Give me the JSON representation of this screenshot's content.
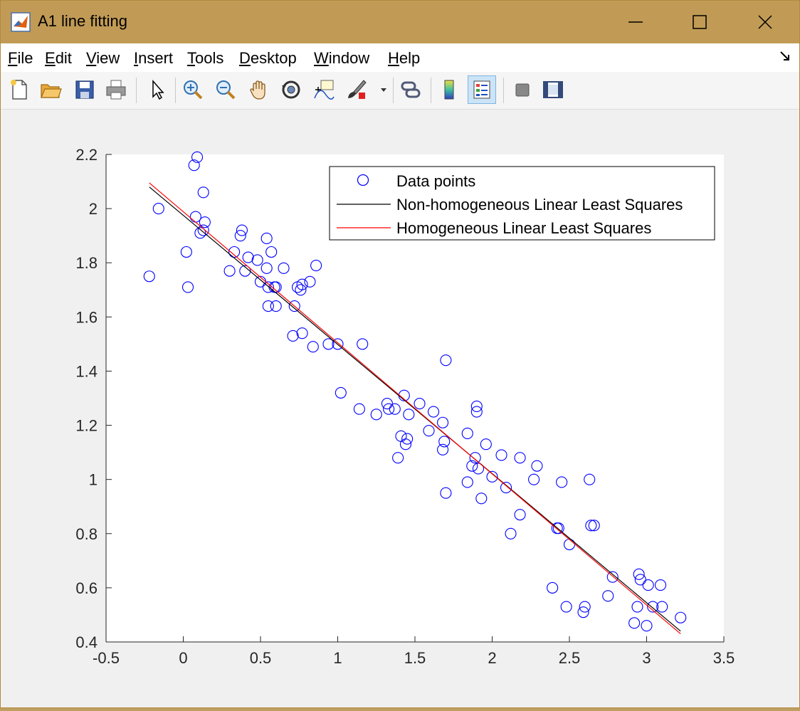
{
  "window": {
    "title": "A1 line fitting"
  },
  "menu": {
    "items": [
      {
        "key": "F",
        "rest": "ile"
      },
      {
        "key": "E",
        "rest": "dit"
      },
      {
        "key": "V",
        "rest": "iew"
      },
      {
        "key": "I",
        "rest": "nsert"
      },
      {
        "key": "T",
        "rest": "ools"
      },
      {
        "key": "D",
        "rest": "esktop"
      },
      {
        "key": "W",
        "rest": "indow"
      },
      {
        "key": "H",
        "rest": "elp"
      }
    ]
  },
  "toolbar": {
    "icons": [
      "new-file-icon",
      "open-folder-icon",
      "save-icon",
      "print-icon",
      "pointer-icon",
      "zoom-in-icon",
      "zoom-out-icon",
      "pan-hand-icon",
      "rotate-3d-icon",
      "data-cursor-icon",
      "brush-icon",
      "link-plot-icon",
      "colorbar-icon",
      "legend-icon",
      "hide-plot-tools-icon",
      "show-plot-tools-icon"
    ]
  },
  "chart_data": {
    "type": "scatter",
    "title": "",
    "xlabel": "",
    "ylabel": "",
    "xlim": [
      -0.5,
      3.5
    ],
    "ylim": [
      0.4,
      2.2
    ],
    "xticks": [
      "-0.5",
      "0",
      "0.5",
      "1",
      "1.5",
      "2",
      "2.5",
      "3",
      "3.5"
    ],
    "yticks": [
      "0.4",
      "0.6",
      "0.8",
      "1",
      "1.2",
      "1.4",
      "1.6",
      "1.8",
      "2",
      "2.2"
    ],
    "grid": false,
    "legend_placement": "top-right",
    "legend": [
      "Data points",
      "Non-homogeneous Linear Least Squares",
      "Homogeneous Linear Least Squares"
    ],
    "colors": {
      "points": "#0000ff",
      "nonhomogeneous": "#000000",
      "homogeneous": "#ff0000"
    },
    "series": [
      {
        "name": "Data points",
        "points": [
          [
            -0.22,
            1.75
          ],
          [
            -0.16,
            2.0
          ],
          [
            0.02,
            1.84
          ],
          [
            0.03,
            1.71
          ],
          [
            0.07,
            2.16
          ],
          [
            0.08,
            1.97
          ],
          [
            0.09,
            2.19
          ],
          [
            0.11,
            1.91
          ],
          [
            0.13,
            2.06
          ],
          [
            0.13,
            1.92
          ],
          [
            0.14,
            1.95
          ],
          [
            0.3,
            1.77
          ],
          [
            0.33,
            1.84
          ],
          [
            0.37,
            1.9
          ],
          [
            0.38,
            1.92
          ],
          [
            0.4,
            1.77
          ],
          [
            0.42,
            1.82
          ],
          [
            0.48,
            1.81
          ],
          [
            0.5,
            1.73
          ],
          [
            0.54,
            1.78
          ],
          [
            0.54,
            1.89
          ],
          [
            0.55,
            1.64
          ],
          [
            0.55,
            1.71
          ],
          [
            0.57,
            1.84
          ],
          [
            0.59,
            1.71
          ],
          [
            0.6,
            1.64
          ],
          [
            0.6,
            1.71
          ],
          [
            0.65,
            1.78
          ],
          [
            0.71,
            1.53
          ],
          [
            0.72,
            1.64
          ],
          [
            0.74,
            1.71
          ],
          [
            0.76,
            1.7
          ],
          [
            0.77,
            1.72
          ],
          [
            0.77,
            1.54
          ],
          [
            0.82,
            1.73
          ],
          [
            0.84,
            1.49
          ],
          [
            0.86,
            1.79
          ],
          [
            0.94,
            1.5
          ],
          [
            1.0,
            1.5
          ],
          [
            1.02,
            1.32
          ],
          [
            1.14,
            1.26
          ],
          [
            1.16,
            1.5
          ],
          [
            1.25,
            1.24
          ],
          [
            1.32,
            1.28
          ],
          [
            1.33,
            1.26
          ],
          [
            1.37,
            1.26
          ],
          [
            1.39,
            1.08
          ],
          [
            1.41,
            1.16
          ],
          [
            1.43,
            1.31
          ],
          [
            1.44,
            1.13
          ],
          [
            1.45,
            1.15
          ],
          [
            1.46,
            1.24
          ],
          [
            1.53,
            1.28
          ],
          [
            1.59,
            1.18
          ],
          [
            1.62,
            1.25
          ],
          [
            1.68,
            1.21
          ],
          [
            1.68,
            1.11
          ],
          [
            1.69,
            1.14
          ],
          [
            1.7,
            1.44
          ],
          [
            1.7,
            0.95
          ],
          [
            1.84,
            1.17
          ],
          [
            1.84,
            0.99
          ],
          [
            1.87,
            1.05
          ],
          [
            1.89,
            1.08
          ],
          [
            1.9,
            1.27
          ],
          [
            1.9,
            1.25
          ],
          [
            1.91,
            1.04
          ],
          [
            1.93,
            0.93
          ],
          [
            1.96,
            1.13
          ],
          [
            2.0,
            1.01
          ],
          [
            2.06,
            1.09
          ],
          [
            2.09,
            0.97
          ],
          [
            2.12,
            0.8
          ],
          [
            2.18,
            1.08
          ],
          [
            2.18,
            0.87
          ],
          [
            2.27,
            1.0
          ],
          [
            2.29,
            1.05
          ],
          [
            2.39,
            0.6
          ],
          [
            2.42,
            0.82
          ],
          [
            2.43,
            0.82
          ],
          [
            2.45,
            0.99
          ],
          [
            2.48,
            0.53
          ],
          [
            2.5,
            0.76
          ],
          [
            2.59,
            0.51
          ],
          [
            2.6,
            0.53
          ],
          [
            2.63,
            1.0
          ],
          [
            2.64,
            0.83
          ],
          [
            2.66,
            0.83
          ],
          [
            2.75,
            0.57
          ],
          [
            2.78,
            0.64
          ],
          [
            2.92,
            0.47
          ],
          [
            2.94,
            0.53
          ],
          [
            2.95,
            0.65
          ],
          [
            2.96,
            0.63
          ],
          [
            3.0,
            0.46
          ],
          [
            3.01,
            0.61
          ],
          [
            3.04,
            0.53
          ],
          [
            3.09,
            0.61
          ],
          [
            3.1,
            0.53
          ],
          [
            3.22,
            0.49
          ]
        ]
      },
      {
        "name": "Non-homogeneous Linear Least Squares",
        "x": [
          -0.22,
          3.22
        ],
        "y": [
          2.08,
          0.44
        ]
      },
      {
        "name": "Homogeneous Linear Least Squares",
        "x": [
          -0.22,
          3.22
        ],
        "y": [
          2.095,
          0.43
        ]
      }
    ]
  }
}
